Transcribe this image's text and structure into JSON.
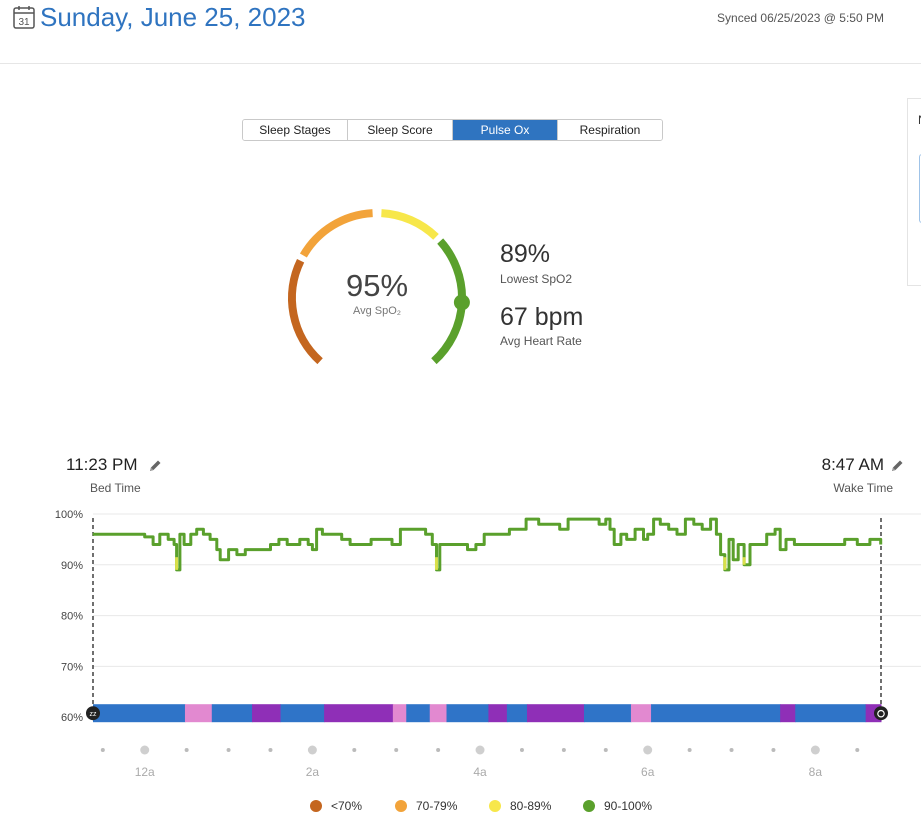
{
  "header": {
    "date_title": "Sunday, June 25, 2023",
    "calendar_icon_day": "31",
    "synced": "Synced 06/25/2023 @ 5:50 PM"
  },
  "side_panel": {
    "letter": "N"
  },
  "tabs": [
    {
      "label": "Sleep Stages",
      "active": false
    },
    {
      "label": "Sleep Score",
      "active": false
    },
    {
      "label": "Pulse Ox",
      "active": true
    },
    {
      "label": "Respiration",
      "active": false
    }
  ],
  "gauge": {
    "value": "95%",
    "label": "Avg SpO₂",
    "avg_spo2": 95,
    "arcs": [
      {
        "band": "<70%",
        "color": "#c4661f"
      },
      {
        "band": "70-79%",
        "color": "#f2a33a"
      },
      {
        "band": "80-89%",
        "color": "#f7e74a"
      },
      {
        "band": "90-100%",
        "color": "#5aa02c"
      }
    ]
  },
  "stats": {
    "lowest_value": "89%",
    "lowest_label": "Lowest SpO2",
    "hr_value": "67 bpm",
    "hr_label": "Avg Heart Rate"
  },
  "bed": {
    "time": "11:23 PM",
    "label": "Bed Time"
  },
  "wake": {
    "time": "8:47 AM",
    "label": "Wake Time"
  },
  "chart_data": {
    "type": "line",
    "xlabel": "",
    "ylabel": "",
    "x_range_hours": [
      23.383,
      32.783
    ],
    "ylim": [
      60,
      100
    ],
    "yticks": [
      "100%",
      "90%",
      "80%",
      "70%",
      "60%"
    ],
    "xticks": [
      {
        "label": "12a",
        "hour": 24
      },
      {
        "label": "2a",
        "hour": 26
      },
      {
        "label": "4a",
        "hour": 28
      },
      {
        "label": "6a",
        "hour": 30
      },
      {
        "label": "8a",
        "hour": 32
      }
    ],
    "series": [
      {
        "points": [
          [
            23.38,
            96
          ],
          [
            23.6,
            96
          ],
          [
            23.9,
            96
          ],
          [
            24.0,
            95.5
          ],
          [
            24.1,
            94
          ],
          [
            24.18,
            96
          ],
          [
            24.28,
            95
          ],
          [
            24.35,
            94
          ],
          [
            24.38,
            89
          ],
          [
            24.42,
            96
          ],
          [
            24.47,
            94
          ],
          [
            24.55,
            96
          ],
          [
            24.62,
            97
          ],
          [
            24.7,
            96
          ],
          [
            24.78,
            95
          ],
          [
            24.86,
            93
          ],
          [
            24.9,
            91
          ],
          [
            25.0,
            93
          ],
          [
            25.1,
            92
          ],
          [
            25.2,
            93
          ],
          [
            25.35,
            93
          ],
          [
            25.5,
            94
          ],
          [
            25.6,
            95
          ],
          [
            25.7,
            94
          ],
          [
            25.85,
            95
          ],
          [
            25.95,
            94
          ],
          [
            26.0,
            93
          ],
          [
            26.05,
            97
          ],
          [
            26.12,
            96
          ],
          [
            26.25,
            96
          ],
          [
            26.35,
            95
          ],
          [
            26.45,
            94
          ],
          [
            26.55,
            94
          ],
          [
            26.7,
            95
          ],
          [
            26.8,
            95
          ],
          [
            26.95,
            94
          ],
          [
            27.05,
            97
          ],
          [
            27.2,
            97
          ],
          [
            27.35,
            96
          ],
          [
            27.43,
            94
          ],
          [
            27.48,
            89
          ],
          [
            27.52,
            94
          ],
          [
            27.6,
            94
          ],
          [
            27.75,
            94
          ],
          [
            27.85,
            93
          ],
          [
            27.95,
            94
          ],
          [
            28.05,
            96
          ],
          [
            28.2,
            96
          ],
          [
            28.35,
            97
          ],
          [
            28.45,
            97
          ],
          [
            28.55,
            99
          ],
          [
            28.7,
            98
          ],
          [
            28.85,
            98
          ],
          [
            28.95,
            97
          ],
          [
            29.05,
            99
          ],
          [
            29.15,
            99
          ],
          [
            29.3,
            99
          ],
          [
            29.42,
            98
          ],
          [
            29.5,
            99
          ],
          [
            29.55,
            97
          ],
          [
            29.6,
            94
          ],
          [
            29.68,
            96
          ],
          [
            29.75,
            95
          ],
          [
            29.85,
            97
          ],
          [
            29.95,
            95
          ],
          [
            30.0,
            96
          ],
          [
            30.07,
            99
          ],
          [
            30.15,
            98
          ],
          [
            30.25,
            97
          ],
          [
            30.35,
            96
          ],
          [
            30.45,
            99
          ],
          [
            30.55,
            98
          ],
          [
            30.65,
            97
          ],
          [
            30.75,
            99
          ],
          [
            30.82,
            96
          ],
          [
            30.87,
            92
          ],
          [
            30.92,
            89
          ],
          [
            30.97,
            95
          ],
          [
            31.02,
            91
          ],
          [
            31.08,
            94
          ],
          [
            31.15,
            90
          ],
          [
            31.22,
            94
          ],
          [
            31.32,
            94
          ],
          [
            31.42,
            96
          ],
          [
            31.52,
            97
          ],
          [
            31.58,
            93
          ],
          [
            31.65,
            95
          ],
          [
            31.75,
            94
          ],
          [
            31.9,
            94
          ],
          [
            32.05,
            94
          ],
          [
            32.2,
            94
          ],
          [
            32.35,
            95
          ],
          [
            32.5,
            94
          ],
          [
            32.65,
            95
          ],
          [
            32.78,
            94
          ]
        ]
      }
    ],
    "sleep_stages_band": [
      {
        "from": 23.383,
        "to": 24.48,
        "color": "#2f74c8"
      },
      {
        "from": 24.48,
        "to": 24.8,
        "color": "#e289d0"
      },
      {
        "from": 24.8,
        "to": 25.28,
        "color": "#2f74c8"
      },
      {
        "from": 25.28,
        "to": 25.62,
        "color": "#8f2fb7"
      },
      {
        "from": 25.62,
        "to": 26.14,
        "color": "#2f74c8"
      },
      {
        "from": 26.14,
        "to": 26.96,
        "color": "#8f2fb7"
      },
      {
        "from": 26.96,
        "to": 27.12,
        "color": "#e289d0"
      },
      {
        "from": 27.12,
        "to": 27.4,
        "color": "#2f74c8"
      },
      {
        "from": 27.4,
        "to": 27.6,
        "color": "#e289d0"
      },
      {
        "from": 27.6,
        "to": 28.1,
        "color": "#2f74c8"
      },
      {
        "from": 28.1,
        "to": 28.32,
        "color": "#8f2fb7"
      },
      {
        "from": 28.32,
        "to": 28.56,
        "color": "#2f74c8"
      },
      {
        "from": 28.56,
        "to": 29.24,
        "color": "#8f2fb7"
      },
      {
        "from": 29.24,
        "to": 29.8,
        "color": "#2f74c8"
      },
      {
        "from": 29.8,
        "to": 30.04,
        "color": "#e289d0"
      },
      {
        "from": 30.04,
        "to": 31.58,
        "color": "#2f74c8"
      },
      {
        "from": 31.58,
        "to": 31.76,
        "color": "#8f2fb7"
      },
      {
        "from": 31.76,
        "to": 32.6,
        "color": "#2f74c8"
      },
      {
        "from": 32.6,
        "to": 32.783,
        "color": "#8f2fb7"
      }
    ],
    "line_color": "#5aa02c",
    "dip_color": "#d9e04a"
  },
  "legend": [
    {
      "label": "<70%",
      "color": "#c4661f"
    },
    {
      "label": "70-79%",
      "color": "#f2a33a"
    },
    {
      "label": "80-89%",
      "color": "#f7e74a"
    },
    {
      "label": "90-100%",
      "color": "#5aa02c"
    }
  ]
}
